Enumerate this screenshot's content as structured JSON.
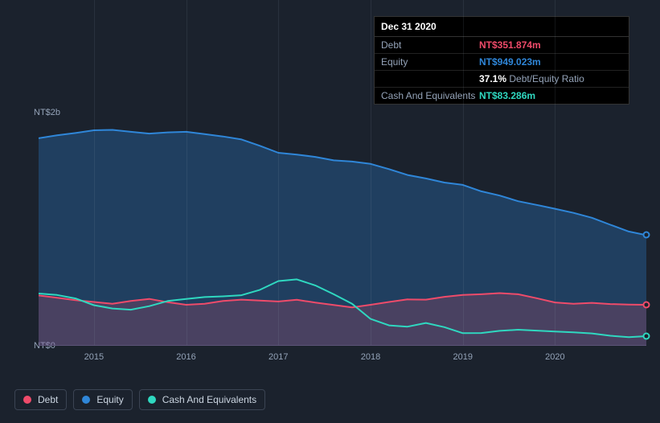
{
  "tooltip": {
    "date": "Dec 31 2020",
    "rows": [
      {
        "label": "Debt",
        "value": "NT$351.874m",
        "color": "#ef4b6a"
      },
      {
        "label": "Equity",
        "value": "NT$949.023m",
        "color": "#2f86d8"
      },
      {
        "label": "",
        "value": "37.1%",
        "sub": " Debt/Equity Ratio",
        "color": "#ffffff"
      },
      {
        "label": "Cash And Equivalents",
        "value": "NT$83.286m",
        "color": "#2fd8c0"
      }
    ]
  },
  "chart": {
    "background": "#1b222d",
    "y_axis": {
      "min": 0,
      "max": 2000,
      "ticks": [
        {
          "value": 2000,
          "label": "NT$2b"
        },
        {
          "value": 0,
          "label": "NT$0"
        }
      ],
      "label_color": "#94a3b8",
      "label_fontsize": 11
    },
    "x_axis": {
      "min": 2014.4,
      "max": 2020.99,
      "ticks": [
        2015,
        2016,
        2017,
        2018,
        2019,
        2020
      ],
      "label_color": "#94a3b8",
      "label_fontsize": 11,
      "grid_color": "rgba(148,163,184,0.12)"
    },
    "series": [
      {
        "name": "Equity",
        "color": "#2f86d8",
        "fill_opacity": 0.3,
        "stroke_width": 2,
        "points": [
          [
            2014.4,
            1780
          ],
          [
            2014.6,
            1805
          ],
          [
            2014.8,
            1825
          ],
          [
            2015.0,
            1848
          ],
          [
            2015.2,
            1852
          ],
          [
            2015.4,
            1835
          ],
          [
            2015.6,
            1820
          ],
          [
            2015.8,
            1830
          ],
          [
            2016.0,
            1835
          ],
          [
            2016.2,
            1815
          ],
          [
            2016.4,
            1795
          ],
          [
            2016.6,
            1770
          ],
          [
            2016.8,
            1715
          ],
          [
            2017.0,
            1655
          ],
          [
            2017.2,
            1640
          ],
          [
            2017.4,
            1620
          ],
          [
            2017.6,
            1590
          ],
          [
            2017.8,
            1580
          ],
          [
            2018.0,
            1560
          ],
          [
            2018.2,
            1515
          ],
          [
            2018.4,
            1465
          ],
          [
            2018.6,
            1435
          ],
          [
            2018.8,
            1400
          ],
          [
            2019.0,
            1380
          ],
          [
            2019.2,
            1325
          ],
          [
            2019.4,
            1288
          ],
          [
            2019.6,
            1240
          ],
          [
            2019.8,
            1208
          ],
          [
            2020.0,
            1175
          ],
          [
            2020.2,
            1140
          ],
          [
            2020.4,
            1098
          ],
          [
            2020.6,
            1038
          ],
          [
            2020.8,
            980
          ],
          [
            2020.99,
            949
          ]
        ]
      },
      {
        "name": "Debt",
        "color": "#ef4b6a",
        "fill_opacity": 0.2,
        "stroke_width": 2,
        "points": [
          [
            2014.4,
            432
          ],
          [
            2014.6,
            412
          ],
          [
            2014.8,
            392
          ],
          [
            2015.0,
            376
          ],
          [
            2015.2,
            360
          ],
          [
            2015.4,
            384
          ],
          [
            2015.6,
            402
          ],
          [
            2015.8,
            374
          ],
          [
            2016.0,
            352
          ],
          [
            2016.2,
            360
          ],
          [
            2016.4,
            384
          ],
          [
            2016.6,
            396
          ],
          [
            2016.8,
            388
          ],
          [
            2017.0,
            380
          ],
          [
            2017.2,
            395
          ],
          [
            2017.4,
            370
          ],
          [
            2017.6,
            350
          ],
          [
            2017.8,
            330
          ],
          [
            2018.0,
            352
          ],
          [
            2018.2,
            376
          ],
          [
            2018.4,
            398
          ],
          [
            2018.6,
            396
          ],
          [
            2018.8,
            420
          ],
          [
            2019.0,
            436
          ],
          [
            2019.2,
            442
          ],
          [
            2019.4,
            452
          ],
          [
            2019.6,
            442
          ],
          [
            2019.8,
            408
          ],
          [
            2020.0,
            372
          ],
          [
            2020.2,
            360
          ],
          [
            2020.4,
            368
          ],
          [
            2020.6,
            358
          ],
          [
            2020.8,
            354
          ],
          [
            2020.99,
            352
          ]
        ]
      },
      {
        "name": "Cash And Equivalents",
        "color": "#2fd8c0",
        "fill_opacity": 0.0,
        "stroke_width": 2,
        "points": [
          [
            2014.4,
            448
          ],
          [
            2014.6,
            436
          ],
          [
            2014.8,
            406
          ],
          [
            2015.0,
            348
          ],
          [
            2015.2,
            320
          ],
          [
            2015.4,
            310
          ],
          [
            2015.6,
            340
          ],
          [
            2015.8,
            384
          ],
          [
            2016.0,
            402
          ],
          [
            2016.2,
            418
          ],
          [
            2016.4,
            424
          ],
          [
            2016.6,
            434
          ],
          [
            2016.8,
            480
          ],
          [
            2017.0,
            555
          ],
          [
            2017.2,
            570
          ],
          [
            2017.4,
            518
          ],
          [
            2017.6,
            442
          ],
          [
            2017.8,
            360
          ],
          [
            2018.0,
            230
          ],
          [
            2018.2,
            175
          ],
          [
            2018.4,
            164
          ],
          [
            2018.6,
            196
          ],
          [
            2018.8,
            160
          ],
          [
            2019.0,
            108
          ],
          [
            2019.2,
            110
          ],
          [
            2019.4,
            128
          ],
          [
            2019.6,
            138
          ],
          [
            2019.8,
            130
          ],
          [
            2020.0,
            122
          ],
          [
            2020.2,
            116
          ],
          [
            2020.4,
            106
          ],
          [
            2020.6,
            86
          ],
          [
            2020.8,
            74
          ],
          [
            2020.99,
            83
          ]
        ]
      }
    ],
    "end_dots": [
      {
        "series": "Equity",
        "color": "#2f86d8"
      },
      {
        "series": "Debt",
        "color": "#ef4b6a"
      },
      {
        "series": "Cash And Equivalents",
        "color": "#2fd8c0"
      }
    ],
    "legend": {
      "items": [
        {
          "label": "Debt",
          "color": "#ef4b6a"
        },
        {
          "label": "Equity",
          "color": "#2f86d8"
        },
        {
          "label": "Cash And Equivalents",
          "color": "#2fd8c0"
        }
      ],
      "border_color": "#3b4453",
      "text_color": "#cbd5e1",
      "fontsize": 12
    }
  }
}
